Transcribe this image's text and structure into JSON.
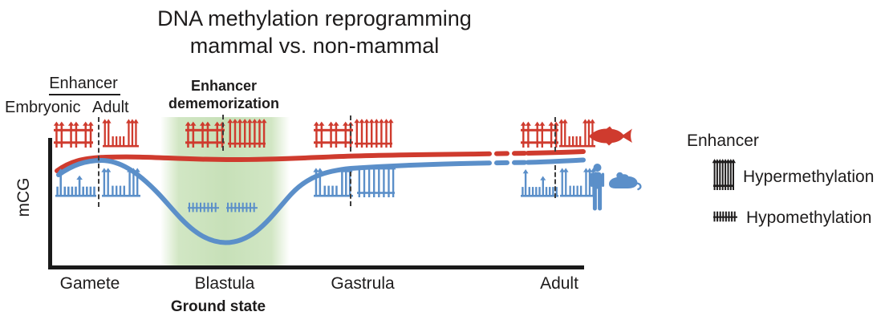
{
  "title": {
    "line1": "DNA methylation reprogramming",
    "line2": "mammal vs. non-mammal"
  },
  "y_axis_label": "mCG",
  "x_ticks": [
    "Gamete",
    "Blastula",
    "Gastrula",
    "Adult"
  ],
  "x_sublabel": "Ground state",
  "enhancer_header": {
    "title": "Enhancer",
    "left": "Embryonic",
    "right": "Adult"
  },
  "band_label": {
    "line1": "Enhancer",
    "line2": "dememorization"
  },
  "legend": {
    "title": "Enhancer",
    "items": [
      {
        "icon": "hypermethylation-icon",
        "pattern": "hyper",
        "label": "Hypermethylation"
      },
      {
        "icon": "hypomethylation-icon",
        "pattern": "hypo",
        "label": "Hypomethylation"
      }
    ]
  },
  "colors": {
    "non_mammal_red": "#cf3b2e",
    "mammal_blue": "#5b8fc9",
    "band_green": "#c7e0b8",
    "ink": "#1e1c1c"
  },
  "species": {
    "non_mammal": "fish",
    "mammal": [
      "human",
      "mouse"
    ]
  },
  "stages": [
    {
      "name": "Gamete",
      "fish_icons": [
        "paired-fence",
        "mixed"
      ],
      "mammal_icons": [
        "sparse-spikes",
        "mixed"
      ]
    },
    {
      "name": "Blastula",
      "fish_icons": [
        "paired-fence",
        "hyper"
      ],
      "mammal_icons": [
        "hypo",
        "hypo"
      ]
    },
    {
      "name": "Gastrula",
      "fish_icons": [
        "paired-fence",
        "hyper"
      ],
      "mammal_icons": [
        "mixed",
        "hyper"
      ]
    },
    {
      "name": "Adult",
      "fish_icons": [
        "paired-fence",
        "mixed"
      ],
      "mammal_icons": [
        "sparse-spikes",
        "mixed"
      ]
    }
  ],
  "chart_data": {
    "type": "line",
    "x": [
      "Gamete",
      "Blastula",
      "Gastrula",
      "Adult"
    ],
    "series": [
      {
        "name": "non-mammal (fish)",
        "color": "#cf3b2e",
        "relative_mCG": [
          0.82,
          0.8,
          0.82,
          0.85
        ],
        "style": "solid, dashed gap before Adult"
      },
      {
        "name": "mammal (human, mouse)",
        "color": "#5b8fc9",
        "relative_mCG": [
          0.78,
          0.18,
          0.74,
          0.8
        ],
        "style": "solid, dashed gap before Adult"
      }
    ],
    "ylabel": "mCG",
    "highlight_region": "Blastula (Ground state, enhancer dememorization)",
    "grid": false,
    "legend_position": "right"
  }
}
